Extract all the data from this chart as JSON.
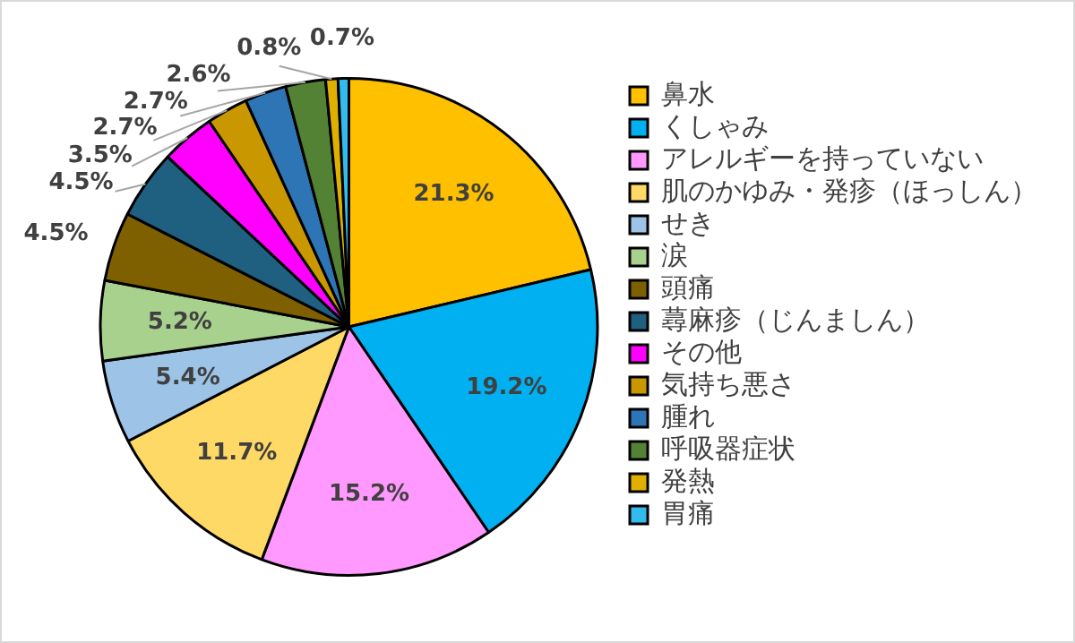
{
  "chart_data": {
    "type": "pie",
    "categories": [
      "鼻水",
      "くしゃみ",
      "アレルギーを持っていない",
      "肌のかゆみ・発疹（ほっしん）",
      "せき",
      "涙",
      "頭痛",
      "蕁麻疹（じんましん）",
      "その他",
      "気持ち悪さ",
      "腫れ",
      "呼吸器症状",
      "発熱",
      "胃痛"
    ],
    "values": [
      21.3,
      19.2,
      15.2,
      11.7,
      5.4,
      5.2,
      4.5,
      4.5,
      3.5,
      2.7,
      2.7,
      2.6,
      0.8,
      0.7
    ],
    "colors": [
      "#ffc000",
      "#00b0f0",
      "#ff99ff",
      "#ffd966",
      "#9dc3e6",
      "#a9d18e",
      "#7f6000",
      "#1f5f7f",
      "#ff00ff",
      "#c99700",
      "#2e75b6",
      "#548235",
      "#e0b000",
      "#33bbee"
    ],
    "value_labels": [
      "21.3%",
      "19.2%",
      "15.2%",
      "11.7%",
      "5.4%",
      "5.2%",
      "4.5%",
      "4.5%",
      "3.5%",
      "2.7%",
      "2.7%",
      "2.6%",
      "0.8%",
      "0.7%"
    ],
    "legend": "right"
  }
}
